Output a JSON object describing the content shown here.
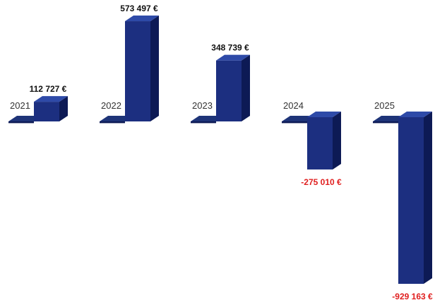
{
  "chart_data": {
    "type": "bar",
    "categories": [
      "2021",
      "2022",
      "2023",
      "2024",
      "2025"
    ],
    "values": [
      112727,
      573497,
      348739,
      -275010,
      -929163
    ],
    "value_labels": [
      "112 727 €",
      "573 497 €",
      "348 739 €",
      "-275 010 €",
      "-929 163 €"
    ],
    "title": "",
    "xlabel": "",
    "ylabel": "",
    "ylim": [
      -929163,
      573497
    ],
    "grid": false,
    "style": "3d-column",
    "colors": {
      "bar_front": "#1c2f80",
      "bar_side": "#0d1a55",
      "bar_top": "#2e4aa8",
      "base_slab": "#1e3478",
      "positive_label": "#111111",
      "negative_label": "#e02020",
      "year_label": "#333333"
    }
  }
}
